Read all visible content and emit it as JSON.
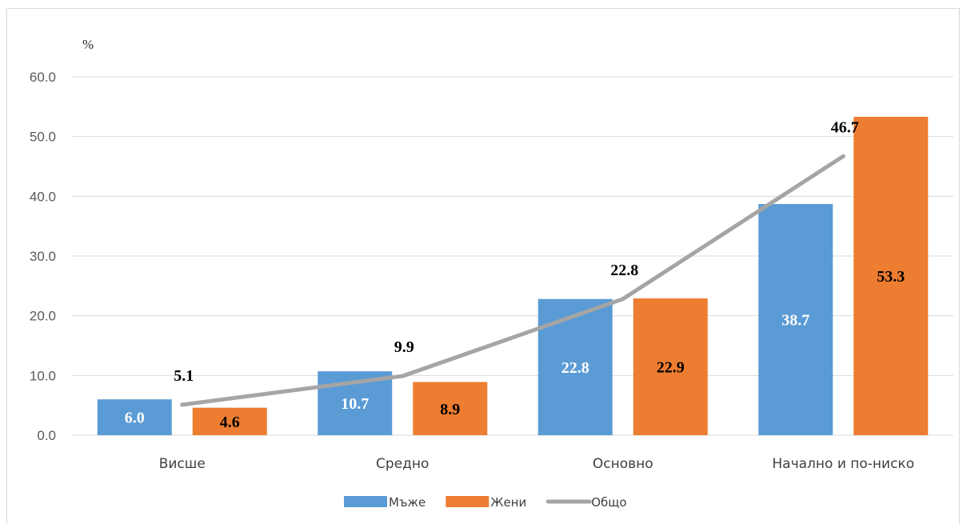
{
  "chart_data": {
    "type": "bar",
    "title": "",
    "ylabel": "%",
    "ylim": [
      0,
      60
    ],
    "yticks": [
      "0.0",
      "10.0",
      "20.0",
      "30.0",
      "40.0",
      "50.0",
      "60.0"
    ],
    "categories": [
      "Висше",
      "Средно",
      "Основно",
      "Начално и по-ниско"
    ],
    "grid": true,
    "legend_position": "bottom",
    "series": [
      {
        "name": "Мъже",
        "kind": "bar",
        "color": "#5b9bd5",
        "values": [
          6.0,
          10.7,
          22.8,
          38.7
        ],
        "labels": [
          "6.0",
          "10.7",
          "22.8",
          "38.7"
        ]
      },
      {
        "name": "Жени",
        "kind": "bar",
        "color": "#ed7d31",
        "values": [
          4.6,
          8.9,
          22.9,
          53.3
        ],
        "labels": [
          "4.6",
          "8.9",
          "22.9",
          "53.3"
        ]
      },
      {
        "name": "Общо",
        "kind": "line",
        "color": "#a5a5a5",
        "values": [
          5.1,
          9.9,
          22.8,
          46.7
        ],
        "labels": [
          "5.1",
          "9.9",
          "22.8",
          "46.7"
        ]
      }
    ]
  }
}
